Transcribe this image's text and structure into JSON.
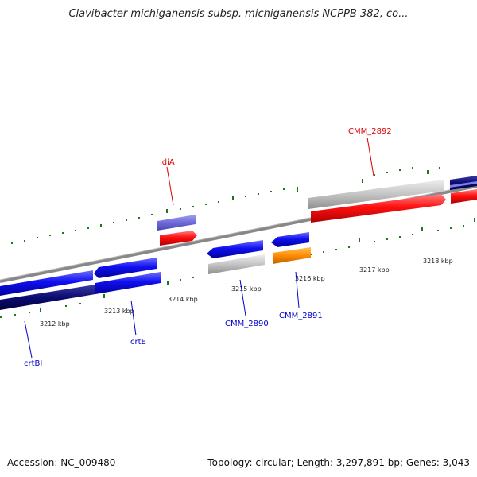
{
  "title": "Clavibacter michiganensis subsp. michiganensis NCPPB 382, co...",
  "footer": {
    "accession": "Accession: NC_009480",
    "summary": "Topology: circular; Length: 3,297,891 bp; Genes: 3,043"
  },
  "colors": {
    "forward_cds": "#0000ee",
    "reverse_cds": "#0000ee",
    "rna": "#ff0000",
    "pseudo": "#bbbbbb",
    "highlight_orange": "#ff8800",
    "tick_green": "#1a7a1a",
    "axis_gray": "#777777"
  },
  "ticks": [
    {
      "label": "3212 kbp"
    },
    {
      "label": "3213 kbp"
    },
    {
      "label": "3214 kbp"
    },
    {
      "label": "3215 kbp"
    },
    {
      "label": "3216 kbp"
    },
    {
      "label": "3217 kbp"
    },
    {
      "label": "3218 kbp"
    }
  ],
  "gene_labels": [
    {
      "name": "crtBI"
    },
    {
      "name": "crtE"
    },
    {
      "name": "CMM_2890"
    },
    {
      "name": "CMM_2891"
    },
    {
      "name": "idiA"
    },
    {
      "name": "CMM_2892"
    }
  ]
}
